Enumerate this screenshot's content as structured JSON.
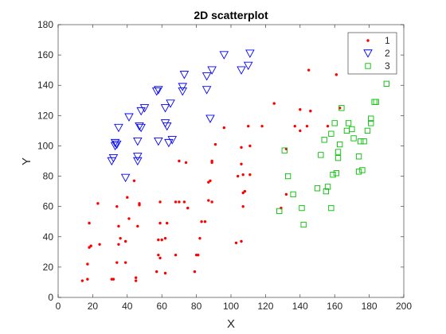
{
  "chart_data": {
    "type": "scatter",
    "title": "2D scatterplot",
    "xlabel": "X",
    "ylabel": "Y",
    "xlim": [
      0,
      200
    ],
    "ylim": [
      0,
      180
    ],
    "xticks": [
      0,
      20,
      40,
      60,
      80,
      100,
      120,
      140,
      160,
      180,
      200
    ],
    "yticks": [
      0,
      20,
      40,
      60,
      80,
      100,
      120,
      140,
      160,
      180
    ],
    "grid": false,
    "legend_position": "top-right",
    "series": [
      {
        "name": "1",
        "marker": "dot",
        "color": "#ff0000",
        "points": [
          [
            14,
            11
          ],
          [
            17,
            12
          ],
          [
            17,
            22
          ],
          [
            18,
            33
          ],
          [
            19,
            34
          ],
          [
            18,
            49
          ],
          [
            23,
            62
          ],
          [
            24,
            35
          ],
          [
            31,
            12
          ],
          [
            32,
            12
          ],
          [
            34,
            23
          ],
          [
            35,
            35
          ],
          [
            35,
            47
          ],
          [
            34,
            60
          ],
          [
            36,
            39
          ],
          [
            39,
            23
          ],
          [
            39,
            37
          ],
          [
            40,
            66
          ],
          [
            41,
            52
          ],
          [
            44,
            77
          ],
          [
            45,
            11
          ],
          [
            45,
            13
          ],
          [
            46,
            47
          ],
          [
            47,
            61
          ],
          [
            47,
            62
          ],
          [
            57,
            17
          ],
          [
            58,
            28
          ],
          [
            58,
            38
          ],
          [
            59,
            26
          ],
          [
            59,
            49
          ],
          [
            60,
            38
          ],
          [
            59,
            63
          ],
          [
            62,
            16
          ],
          [
            62,
            39
          ],
          [
            63,
            49
          ],
          [
            68,
            28
          ],
          [
            68,
            63
          ],
          [
            70,
            63
          ],
          [
            70,
            90
          ],
          [
            73,
            63
          ],
          [
            74,
            89
          ],
          [
            75,
            59
          ],
          [
            79,
            17
          ],
          [
            80,
            28
          ],
          [
            81,
            28
          ],
          [
            82,
            39
          ],
          [
            83,
            50
          ],
          [
            85,
            50
          ],
          [
            87,
            64
          ],
          [
            87,
            76
          ],
          [
            88,
            77
          ],
          [
            89,
            89
          ],
          [
            89,
            90
          ],
          [
            89,
            63
          ],
          [
            91,
            101
          ],
          [
            96,
            112
          ],
          [
            103,
            36
          ],
          [
            104,
            80
          ],
          [
            106,
            37
          ],
          [
            106,
            88
          ],
          [
            106,
            99
          ],
          [
            107,
            60
          ],
          [
            107,
            69
          ],
          [
            108,
            70
          ],
          [
            107,
            81
          ],
          [
            110,
            113
          ],
          [
            111,
            81
          ],
          [
            111,
            100
          ],
          [
            118,
            113
          ],
          [
            125,
            128
          ],
          [
            129,
            59
          ],
          [
            132,
            68
          ],
          [
            132,
            98
          ],
          [
            137,
            113
          ],
          [
            140,
            124
          ],
          [
            140,
            110
          ],
          [
            144,
            113
          ],
          [
            145,
            150
          ],
          [
            146,
            123
          ],
          [
            156,
            113
          ],
          [
            161,
            147
          ],
          [
            163,
            125
          ]
        ]
      },
      {
        "name": "2",
        "marker": "triangle-down",
        "color": "#0000ff",
        "points": [
          [
            31,
            90
          ],
          [
            32,
            92
          ],
          [
            33,
            100
          ],
          [
            33,
            102
          ],
          [
            34,
            101
          ],
          [
            35,
            112
          ],
          [
            39,
            79
          ],
          [
            41,
            119
          ],
          [
            46,
            90
          ],
          [
            46,
            93
          ],
          [
            46,
            103
          ],
          [
            47,
            113
          ],
          [
            48,
            112
          ],
          [
            48,
            123
          ],
          [
            50,
            125
          ],
          [
            57,
            136
          ],
          [
            58,
            137
          ],
          [
            58,
            103
          ],
          [
            62,
            115
          ],
          [
            62,
            125
          ],
          [
            63,
            113
          ],
          [
            64,
            102
          ],
          [
            65,
            128
          ],
          [
            66,
            104
          ],
          [
            72,
            136
          ],
          [
            72,
            139
          ],
          [
            73,
            147
          ],
          [
            86,
            137
          ],
          [
            86,
            146
          ],
          [
            88,
            118
          ],
          [
            89,
            150
          ],
          [
            96,
            160
          ],
          [
            106,
            150
          ],
          [
            110,
            153
          ],
          [
            111,
            161
          ]
        ]
      },
      {
        "name": "3",
        "marker": "square",
        "color": "#00bf00",
        "points": [
          [
            128,
            57
          ],
          [
            131,
            97
          ],
          [
            133,
            80
          ],
          [
            136,
            68
          ],
          [
            141,
            59
          ],
          [
            142,
            48
          ],
          [
            150,
            72
          ],
          [
            152,
            94
          ],
          [
            154,
            104
          ],
          [
            155,
            70
          ],
          [
            156,
            73
          ],
          [
            158,
            59
          ],
          [
            158,
            108
          ],
          [
            159,
            81
          ],
          [
            160,
            115
          ],
          [
            161,
            82
          ],
          [
            162,
            92
          ],
          [
            162,
            96
          ],
          [
            163,
            101
          ],
          [
            164,
            125
          ],
          [
            167,
            110
          ],
          [
            168,
            115
          ],
          [
            170,
            111
          ],
          [
            171,
            105
          ],
          [
            174,
            83
          ],
          [
            174,
            93
          ],
          [
            175,
            103
          ],
          [
            176,
            84
          ],
          [
            177,
            103
          ],
          [
            179,
            110
          ],
          [
            181,
            115
          ],
          [
            181,
            118
          ],
          [
            183,
            129
          ],
          [
            184,
            129
          ],
          [
            190,
            141
          ]
        ]
      }
    ]
  }
}
